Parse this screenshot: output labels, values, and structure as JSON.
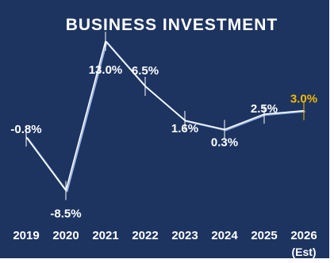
{
  "title": "BUSINESS INVESTMENT",
  "colors": {
    "background": "#1d3461",
    "text": "#ffffff",
    "estimate": "#f5b800",
    "line_accent": "#9bb7e6"
  },
  "chart_data": {
    "type": "line",
    "title": "BUSINESS INVESTMENT",
    "categories": [
      "2019",
      "2020",
      "2021",
      "2022",
      "2023",
      "2024",
      "2025",
      "2026"
    ],
    "estimate_note": "(Est)",
    "series": [
      {
        "values": [
          -0.8,
          -8.5,
          13.0,
          6.5,
          1.6,
          0.3,
          2.5,
          3.0
        ]
      }
    ],
    "data_labels": [
      "-0.8%",
      "-8.5%",
      "13.0%",
      "6.5%",
      "1.6%",
      "0.3%",
      "2.5%",
      "3.0%"
    ],
    "estimate_index": 7,
    "grid": false,
    "legend": "none"
  }
}
